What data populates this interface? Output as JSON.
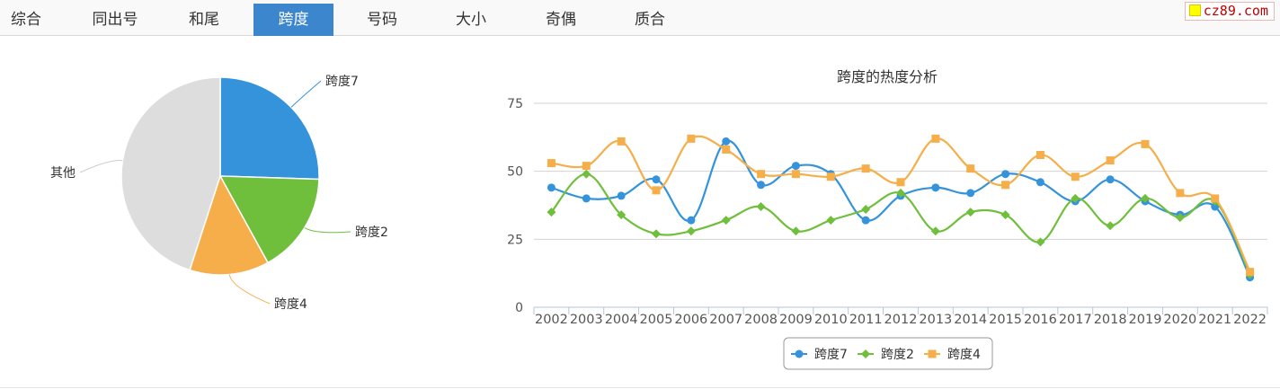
{
  "tabs": [
    {
      "label": "综合",
      "active": false
    },
    {
      "label": "同出号",
      "active": false
    },
    {
      "label": "和尾",
      "active": false
    },
    {
      "label": "跨度",
      "active": true
    },
    {
      "label": "号码",
      "active": false
    },
    {
      "label": "大小",
      "active": false
    },
    {
      "label": "奇偶",
      "active": false
    },
    {
      "label": "质合",
      "active": false
    }
  ],
  "logo": {
    "text": "cz89.com"
  },
  "chart_data": [
    {
      "type": "pie",
      "title": "",
      "slices": [
        {
          "label": "跨度7",
          "value": 25.5,
          "color": "#3493db"
        },
        {
          "label": "跨度2",
          "value": 16.5,
          "color": "#6fbf3c"
        },
        {
          "label": "跨度4",
          "value": 13.0,
          "color": "#f5ae4a"
        },
        {
          "label": "其他",
          "value": 45.0,
          "color": "#dddddd"
        }
      ]
    },
    {
      "type": "line",
      "title": "跨度的热度分析",
      "categories": [
        "2002",
        "2003",
        "2004",
        "2005",
        "2006",
        "2007",
        "2008",
        "2009",
        "2010",
        "2011",
        "2012",
        "2013",
        "2014",
        "2015",
        "2016",
        "2017",
        "2018",
        "2019",
        "2020",
        "2021",
        "2022"
      ],
      "ylim": [
        0,
        75
      ],
      "yticks": [
        0,
        25,
        50,
        75
      ],
      "grid": true,
      "legend": "bottom",
      "series": [
        {
          "name": "跨度7",
          "color": "#3493db",
          "marker": "circle",
          "values": [
            44,
            40,
            41,
            47,
            32,
            61,
            45,
            52,
            49,
            32,
            41,
            44,
            42,
            49,
            46,
            39,
            47,
            39,
            34,
            37,
            11
          ]
        },
        {
          "name": "跨度2",
          "color": "#6fbf3c",
          "marker": "diamond",
          "values": [
            35,
            49,
            34,
            27,
            28,
            32,
            37,
            28,
            32,
            36,
            42,
            28,
            35,
            34,
            24,
            40,
            30,
            40,
            33,
            39,
            12
          ]
        },
        {
          "name": "跨度4",
          "color": "#f5ae4a",
          "marker": "square",
          "values": [
            53,
            52,
            61,
            43,
            62,
            58,
            49,
            49,
            48,
            51,
            46,
            62,
            51,
            45,
            56,
            48,
            54,
            60,
            42,
            40,
            13
          ]
        }
      ]
    }
  ]
}
